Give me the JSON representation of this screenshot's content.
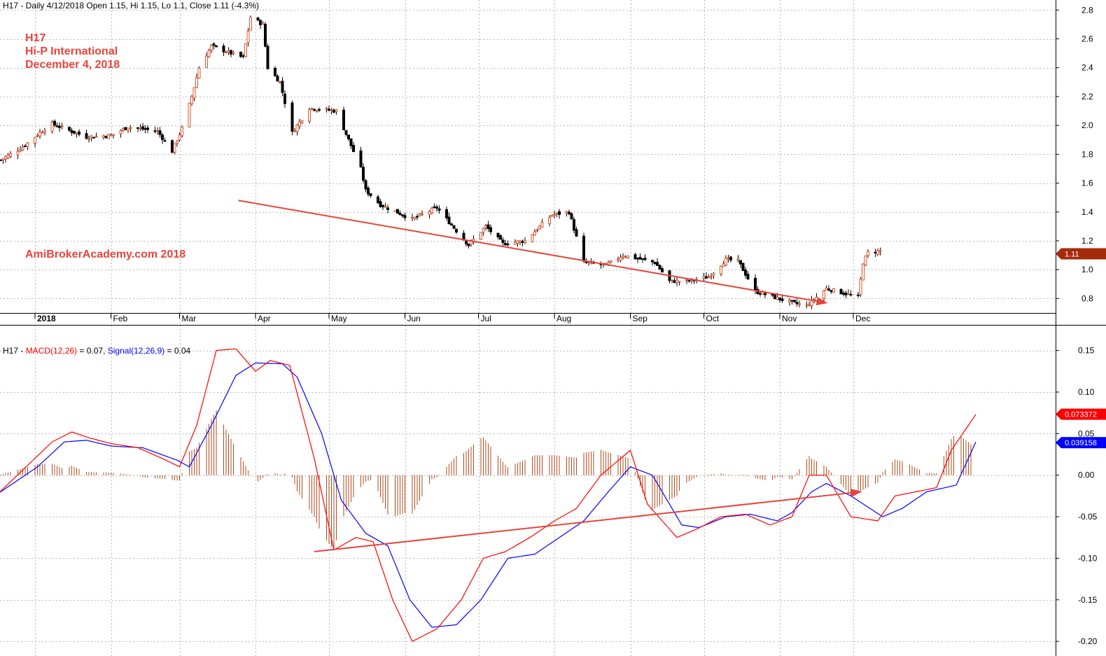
{
  "header": {
    "price": "H17 - Daily 4/12/2018 Open 1.15, Hi 1.15, Lo 1.1, Close 1.11 (-4.3%)",
    "macd_prefix": "H17 - ",
    "macd_label": "MACD(12,26)",
    "macd_value": " = 0.07, ",
    "signal_label": "Signal(12,26,9)",
    "signal_value": " = 0.04"
  },
  "annotations": {
    "ticker": "H17",
    "company": "Hi-P International",
    "date": "December 4, 2018",
    "watermark": "AmiBrokerAcademy.com  2018"
  },
  "colors": {
    "up": "#d9542b",
    "down": "#000000",
    "macd": "#ff0000",
    "signal": "#0000ff",
    "histogram": "#b04a1a",
    "trendline": "#e8443a",
    "grid": "#b8b8b8"
  },
  "chart_data": [
    {
      "type": "candlestick",
      "ylim": [
        0.7,
        2.85
      ],
      "yticks": [
        "0.8",
        "1.0",
        "1.2",
        "1.4",
        "1.6",
        "1.8",
        "2.0",
        "2.2",
        "2.4",
        "2.6",
        "2.8"
      ],
      "months": [
        "2018",
        "Feb",
        "Mar",
        "Apr",
        "May",
        "Jun",
        "Jul",
        "Aug",
        "Sep",
        "Oct",
        "Nov",
        "Dec"
      ],
      "last_close": "1.11",
      "keypoints": [
        [
          "2017-12-18",
          1.76
        ],
        [
          "2017-12-27",
          1.85
        ],
        [
          "2018-01-03",
          1.95
        ],
        [
          "2018-01-08",
          2.01
        ],
        [
          "2018-01-22",
          1.92
        ],
        [
          "2018-02-01",
          1.93
        ],
        [
          "2018-02-08",
          1.99
        ],
        [
          "2018-02-20",
          1.96
        ],
        [
          "2018-02-26",
          1.82
        ],
        [
          "2018-03-02",
          1.98
        ],
        [
          "2018-03-06",
          2.2
        ],
        [
          "2018-03-09",
          2.4
        ],
        [
          "2018-03-14",
          2.55
        ],
        [
          "2018-03-27",
          2.47
        ],
        [
          "2018-03-30",
          2.75
        ],
        [
          "2018-04-04",
          2.7
        ],
        [
          "2018-04-06",
          2.4
        ],
        [
          "2018-04-11",
          2.3
        ],
        [
          "2018-04-16",
          1.95
        ],
        [
          "2018-04-23",
          2.12
        ],
        [
          "2018-05-04",
          2.1
        ],
        [
          "2018-05-09",
          1.9
        ],
        [
          "2018-05-14",
          1.7
        ],
        [
          "2018-05-16",
          1.55
        ],
        [
          "2018-05-22",
          1.45
        ],
        [
          "2018-06-04",
          1.35
        ],
        [
          "2018-06-14",
          1.43
        ],
        [
          "2018-06-27",
          1.17
        ],
        [
          "2018-07-04",
          1.3
        ],
        [
          "2018-07-11",
          1.18
        ],
        [
          "2018-07-20",
          1.2
        ],
        [
          "2018-07-31",
          1.38
        ],
        [
          "2018-08-07",
          1.4
        ],
        [
          "2018-08-13",
          1.05
        ],
        [
          "2018-08-22",
          1.03
        ],
        [
          "2018-08-29",
          1.1
        ],
        [
          "2018-09-11",
          1.05
        ],
        [
          "2018-09-17",
          0.92
        ],
        [
          "2018-09-24",
          0.92
        ],
        [
          "2018-10-03",
          0.95
        ],
        [
          "2018-10-10",
          1.07
        ],
        [
          "2018-10-15",
          1.06
        ],
        [
          "2018-10-22",
          0.85
        ],
        [
          "2018-11-06",
          0.77
        ],
        [
          "2018-11-12",
          0.75
        ],
        [
          "2018-11-20",
          0.87
        ],
        [
          "2018-12-03",
          0.81
        ],
        [
          "2018-12-05",
          1.05
        ],
        [
          "2018-12-07",
          1.12
        ],
        [
          "2018-12-12",
          1.13
        ]
      ],
      "trendline": [
        [
          "2018-03-25",
          1.48
        ],
        [
          "2018-11-20",
          0.77
        ]
      ]
    },
    {
      "type": "macd",
      "ylim": [
        -0.21,
        0.18
      ],
      "yticks": [
        "0.15",
        "0.10",
        "0.05",
        "0.00",
        "-0.05",
        "-0.10",
        "-0.15",
        "-0.20"
      ],
      "macd_last": "0.073372",
      "signal_last": "0.039158",
      "macd_keypoints": [
        [
          "2017-12-17",
          -0.022
        ],
        [
          "2018-01-08",
          0.04
        ],
        [
          "2018-01-16",
          0.052
        ],
        [
          "2018-01-23",
          0.045
        ],
        [
          "2018-02-01",
          0.038
        ],
        [
          "2018-02-12",
          0.033
        ],
        [
          "2018-02-22",
          0.02
        ],
        [
          "2018-03-01",
          0.01
        ],
        [
          "2018-03-08",
          0.06
        ],
        [
          "2018-03-16",
          0.15
        ],
        [
          "2018-03-24",
          0.152
        ],
        [
          "2018-04-01",
          0.125
        ],
        [
          "2018-04-07",
          0.138
        ],
        [
          "2018-04-15",
          0.132
        ],
        [
          "2018-04-25",
          0.02
        ],
        [
          "2018-05-03",
          -0.09
        ],
        [
          "2018-05-12",
          -0.075
        ],
        [
          "2018-05-19",
          -0.08
        ],
        [
          "2018-05-27",
          -0.15
        ],
        [
          "2018-06-04",
          -0.2
        ],
        [
          "2018-06-14",
          -0.185
        ],
        [
          "2018-06-24",
          -0.15
        ],
        [
          "2018-07-03",
          -0.1
        ],
        [
          "2018-07-12",
          -0.092
        ],
        [
          "2018-07-22",
          -0.075
        ],
        [
          "2018-08-01",
          -0.055
        ],
        [
          "2018-08-10",
          -0.04
        ],
        [
          "2018-08-20",
          0.0
        ],
        [
          "2018-09-01",
          0.03
        ],
        [
          "2018-09-08",
          -0.035
        ],
        [
          "2018-09-20",
          -0.075
        ],
        [
          "2018-09-28",
          -0.065
        ],
        [
          "2018-10-08",
          -0.05
        ],
        [
          "2018-10-18",
          -0.047
        ],
        [
          "2018-10-28",
          -0.06
        ],
        [
          "2018-11-06",
          -0.05
        ],
        [
          "2018-11-13",
          0.0
        ],
        [
          "2018-11-20",
          0.0
        ],
        [
          "2018-11-30",
          -0.05
        ],
        [
          "2018-12-11",
          -0.055
        ],
        [
          "2018-12-18",
          -0.025
        ],
        [
          "2018-12-30",
          -0.018
        ],
        [
          "2019-01-04",
          -0.015
        ],
        [
          "2019-01-10",
          0.03
        ],
        [
          "2019-01-17",
          0.06
        ],
        [
          "2019-01-20",
          0.073
        ]
      ],
      "signal_keypoints": [
        [
          "2017-12-17",
          -0.022
        ],
        [
          "2018-01-02",
          0.01
        ],
        [
          "2018-01-13",
          0.04
        ],
        [
          "2018-01-22",
          0.042
        ],
        [
          "2018-02-01",
          0.035
        ],
        [
          "2018-02-14",
          0.033
        ],
        [
          "2018-02-28",
          0.018
        ],
        [
          "2018-03-05",
          0.01
        ],
        [
          "2018-03-14",
          0.06
        ],
        [
          "2018-03-24",
          0.12
        ],
        [
          "2018-04-01",
          0.135
        ],
        [
          "2018-04-12",
          0.134
        ],
        [
          "2018-04-18",
          0.118
        ],
        [
          "2018-04-28",
          0.05
        ],
        [
          "2018-05-06",
          -0.03
        ],
        [
          "2018-05-16",
          -0.07
        ],
        [
          "2018-05-25",
          -0.085
        ],
        [
          "2018-06-03",
          -0.15
        ],
        [
          "2018-06-12",
          -0.183
        ],
        [
          "2018-06-22",
          -0.18
        ],
        [
          "2018-07-02",
          -0.15
        ],
        [
          "2018-07-13",
          -0.1
        ],
        [
          "2018-07-24",
          -0.095
        ],
        [
          "2018-08-03",
          -0.075
        ],
        [
          "2018-08-13",
          -0.055
        ],
        [
          "2018-08-23",
          -0.02
        ],
        [
          "2018-09-01",
          0.01
        ],
        [
          "2018-09-10",
          0.0
        ],
        [
          "2018-09-22",
          -0.06
        ],
        [
          "2018-09-29",
          -0.063
        ],
        [
          "2018-10-10",
          -0.05
        ],
        [
          "2018-10-20",
          -0.047
        ],
        [
          "2018-10-31",
          -0.055
        ],
        [
          "2018-11-06",
          -0.045
        ],
        [
          "2018-11-14",
          -0.02
        ],
        [
          "2018-11-20",
          -0.01
        ],
        [
          "2018-11-30",
          -0.025
        ],
        [
          "2018-12-13",
          -0.05
        ],
        [
          "2018-12-21",
          -0.04
        ],
        [
          "2018-12-31",
          -0.02
        ],
        [
          "2019-01-12",
          -0.012
        ],
        [
          "2019-01-20",
          0.04
        ]
      ],
      "trendline": [
        [
          "2018-04-25",
          -0.092
        ],
        [
          "2018-12-04",
          -0.02
        ]
      ]
    }
  ]
}
